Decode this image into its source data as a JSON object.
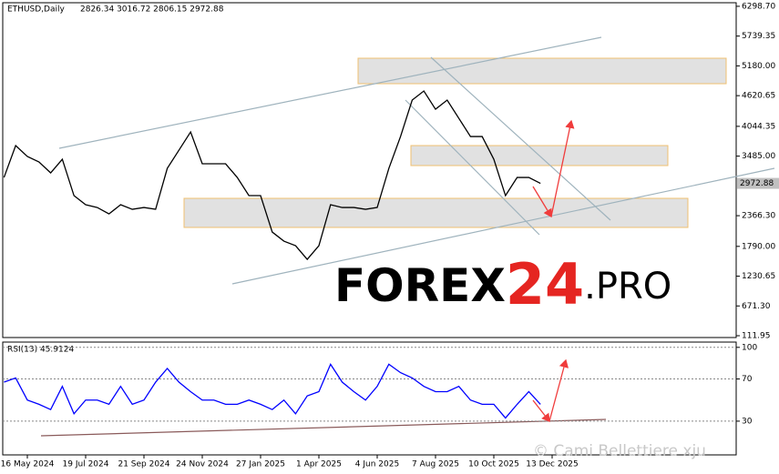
{
  "chart_data": [
    {
      "type": "line",
      "title": "ETHUSD,Daily",
      "subtitle": "2826.34 3016.72 2806.15 2972.88",
      "color": "#000000",
      "ylim": [
        78,
        6417
      ],
      "yticks": [
        {
          "value": 6298.7,
          "label": "6298.70"
        },
        {
          "value": 5739.35,
          "label": "5739.35"
        },
        {
          "value": 5180,
          "label": "5180.00"
        },
        {
          "value": 4620.65,
          "label": "4620.65"
        },
        {
          "value": 4044.35,
          "label": "4044.35"
        },
        {
          "value": 3485,
          "label": "3485.00"
        },
        {
          "value": 2366.3,
          "label": "2366.30"
        },
        {
          "value": 1790,
          "label": "1790.00"
        },
        {
          "value": 1230.65,
          "label": "1230.65"
        },
        {
          "value": 671.3,
          "label": "671.30"
        },
        {
          "value": 111.95,
          "label": "111.95"
        }
      ],
      "values": [
        3084,
        3682,
        3478,
        3375,
        3170,
        3426,
        2743,
        2572,
        2520,
        2400,
        2572,
        2486,
        2520,
        2486,
        3255,
        3597,
        3939,
        3341,
        3341,
        3341,
        3084,
        2743,
        2743,
        2059,
        1888,
        1803,
        1546,
        1803,
        2572,
        2520,
        2520,
        2486,
        2520,
        3255,
        3853,
        4537,
        4708,
        4366,
        4537,
        4195,
        3853,
        3853,
        3426,
        2743,
        3084,
        3084,
        2972.88,
        null
      ]
    },
    {
      "type": "line",
      "title": "RSI(13) 45.9124",
      "color": "#0000ff",
      "grid": true,
      "ylim": [
        -2,
        105
      ],
      "yticks": [
        100,
        70,
        30
      ],
      "categories": [
        null,
        null,
        "16 May 2024",
        null,
        null,
        null,
        null,
        "19 Jul 2024",
        null,
        null,
        null,
        null,
        "21 Sep 2024",
        null,
        null,
        null,
        null,
        "24 Nov 2024",
        null,
        null,
        null,
        null,
        "27 Jan 2025",
        null,
        null,
        null,
        null,
        "1 Apr 2025",
        null,
        null,
        null,
        null,
        "4 Jun 2025",
        null,
        null,
        null,
        null,
        "7 Aug 2025",
        null,
        null,
        null,
        null,
        "10 Oct 2025",
        null,
        null,
        null,
        null,
        "13 Dec 2025"
      ],
      "values": [
        67,
        71,
        50,
        46,
        41,
        63,
        37,
        50,
        50,
        46,
        63,
        46,
        50,
        67,
        80,
        67,
        58,
        50,
        50,
        46,
        46,
        50,
        46,
        41,
        50,
        37,
        54,
        58,
        84,
        67,
        58,
        50,
        63,
        84,
        76,
        71,
        63,
        58,
        58,
        63,
        50,
        46,
        46,
        33,
        46,
        58,
        45.9124,
        null
      ]
    }
  ],
  "watermark": {
    "brand": "FOREX",
    "number": "24",
    "suffix": ".PRO",
    "credit": "© Cami Bellettiere xju"
  }
}
